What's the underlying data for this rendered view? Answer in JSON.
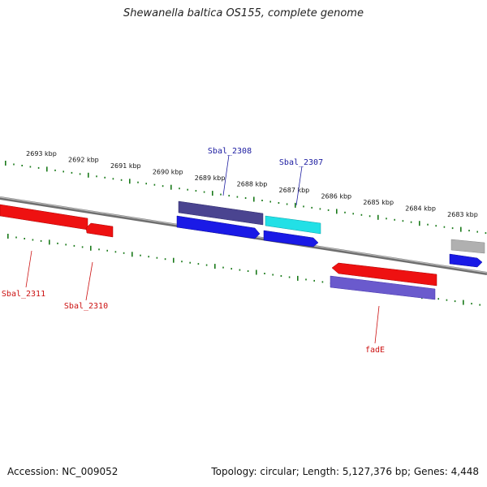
{
  "title": "Shewanella baltica OS155, complete genome",
  "footer": {
    "accession": "Accession: NC_009052",
    "summary": "Topology: circular; Length: 5,127,376 bp; Genes: 4,448"
  },
  "scale_labels": [
    "2693 kbp",
    "2692 kbp",
    "2691 kbp",
    "2690 kbp",
    "2689 kbp",
    "2688 kbp",
    "2687 kbp",
    "2686 kbp",
    "2685 kbp",
    "2684 kbp",
    "2683 kbp"
  ],
  "gene_labels": {
    "sbal2308": "Sbal_2308",
    "sbal2307": "Sbal_2307",
    "sbal2311": "Sbal_2311",
    "sbal2310": "Sbal_2310",
    "fadE": "fadE"
  },
  "colors": {
    "backbone": "#8a8a8a",
    "tick": "#1a7a1a",
    "red": "#ee1111",
    "blue": "#1a1ae6",
    "dark_purple": "#4a4490",
    "cyan": "#22e0e6",
    "light_purple": "#6a5acd",
    "gray": "#b0b0b0",
    "label_blue": "#1a1aa0",
    "label_red": "#cc1111"
  }
}
